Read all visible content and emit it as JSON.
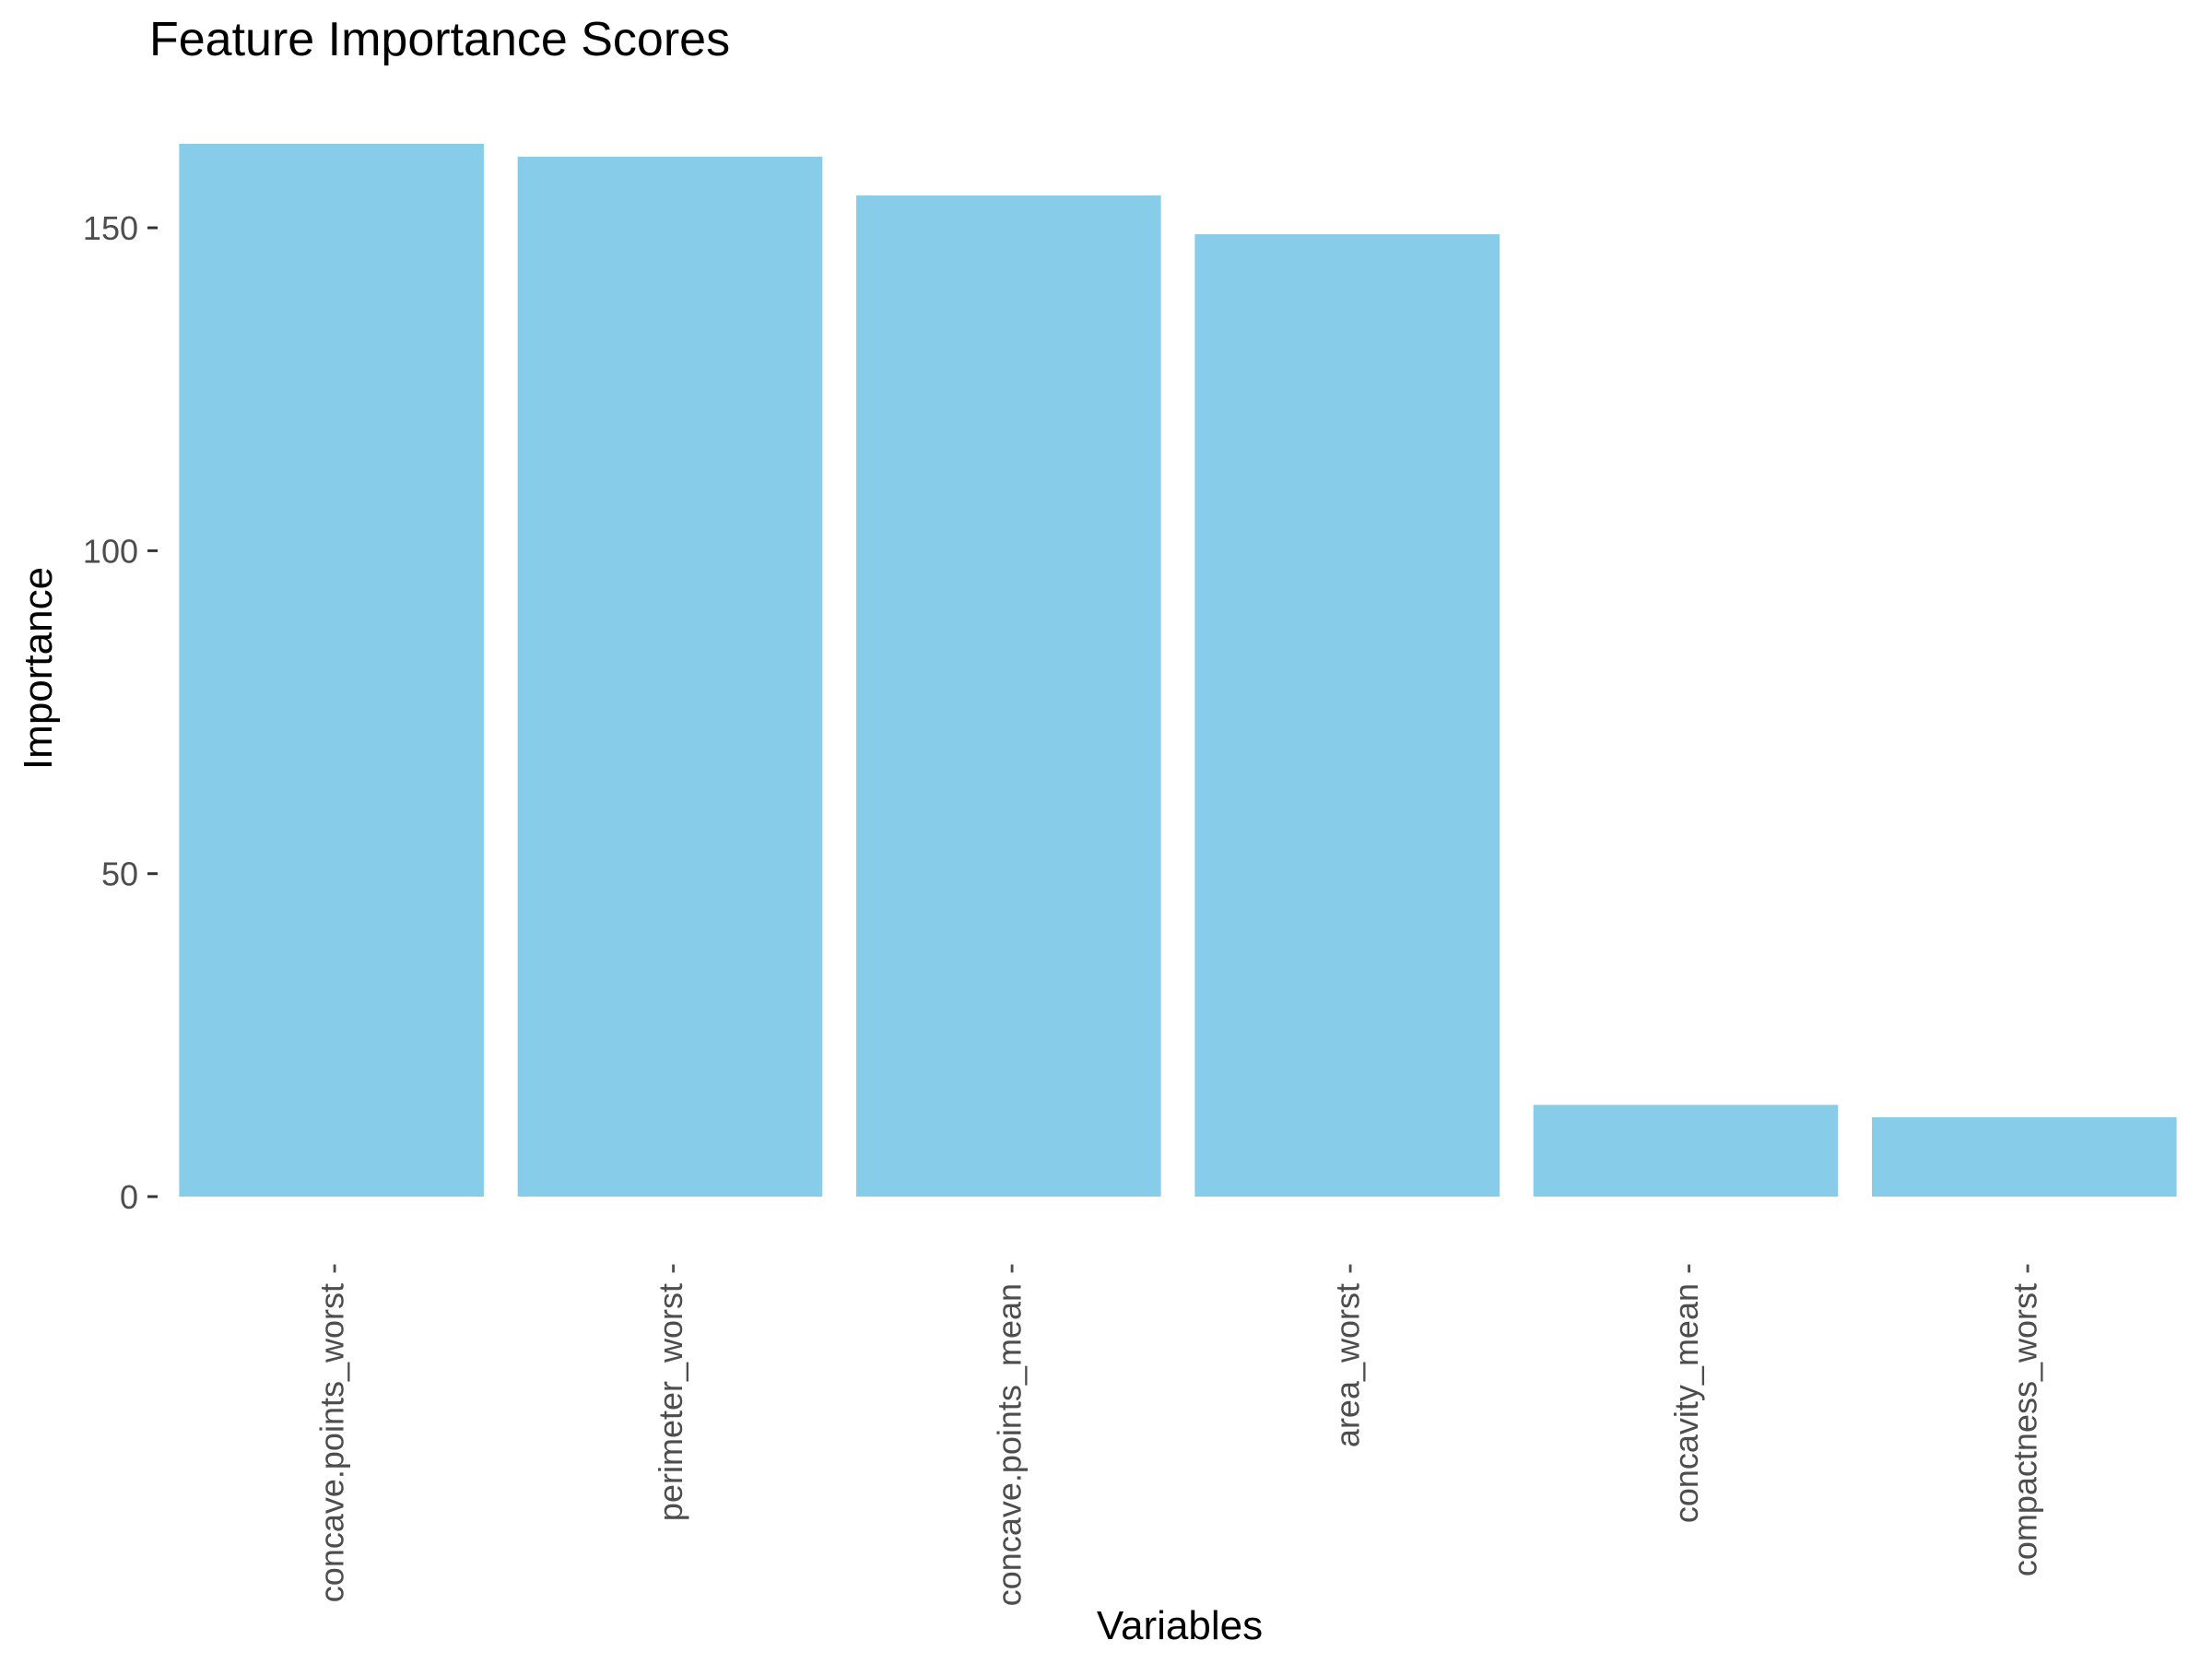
{
  "chart_data": {
    "type": "bar",
    "title": "Feature Importance Scores",
    "xlabel": "Variables",
    "ylabel": "Importance",
    "categories": [
      "concave.points_worst",
      "perimeter_worst",
      "concave.points_mean",
      "area_worst",
      "concavity_mean",
      "compactness_worst"
    ],
    "values": [
      163,
      161,
      155,
      149,
      14.2,
      12.3
    ],
    "ylim": [
      0,
      163
    ],
    "yticks": [
      0,
      50,
      100,
      150
    ],
    "ytick_labels": [
      "0",
      "50",
      "100",
      "150"
    ],
    "grid": false,
    "legend": "none",
    "colors": {
      "bar": "#87CDE9",
      "text": "#000000",
      "tick_label": "#4D4D4D",
      "tick": "#333333",
      "background": "#FFFFFF"
    }
  }
}
